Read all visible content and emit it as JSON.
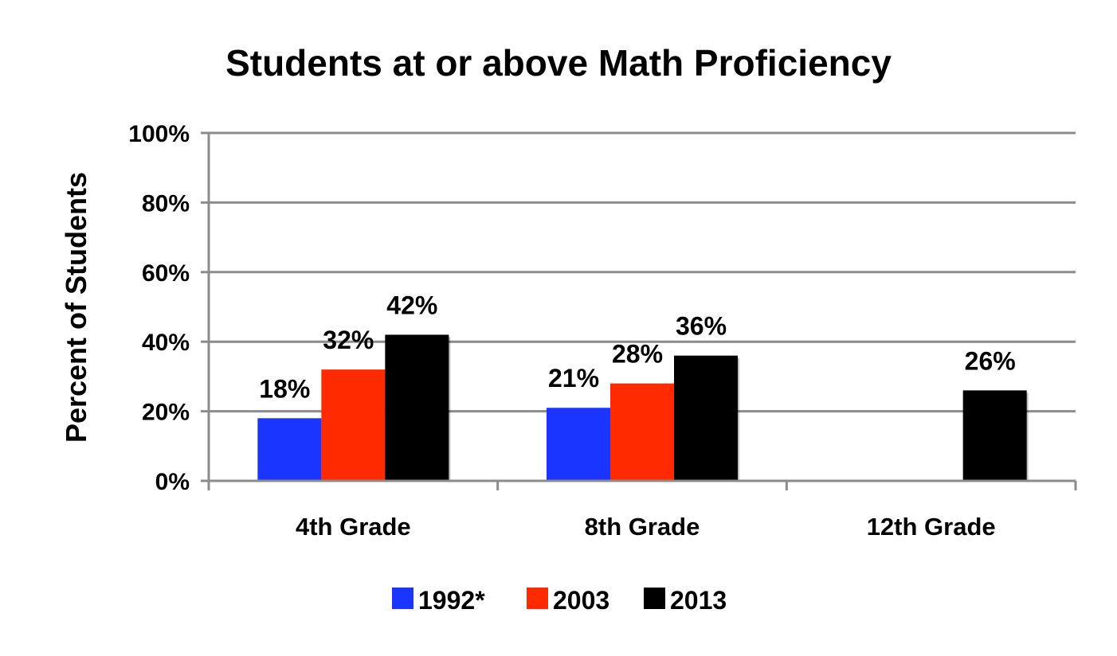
{
  "chart_data": {
    "type": "bar",
    "title": "Students at or above Math Proficiency",
    "ylabel": "Percent of Students",
    "xlabel": "",
    "ylim": [
      0,
      100
    ],
    "y_ticks": [
      "0%",
      "20%",
      "40%",
      "60%",
      "80%",
      "100%"
    ],
    "categories": [
      "4th Grade",
      "8th Grade",
      "12th Grade"
    ],
    "series": [
      {
        "name": "1992*",
        "color": "#1a35ff",
        "values": [
          18,
          21,
          null
        ],
        "labels": [
          "18%",
          "21%",
          ""
        ]
      },
      {
        "name": "2003",
        "color": "#ff2a00",
        "values": [
          32,
          28,
          null
        ],
        "labels": [
          "32%",
          "28%",
          ""
        ]
      },
      {
        "name": "2013",
        "color": "#000000",
        "values": [
          42,
          36,
          26
        ],
        "labels": [
          "42%",
          "36%",
          "26%"
        ]
      }
    ],
    "grid": true,
    "legend_position": "bottom"
  }
}
